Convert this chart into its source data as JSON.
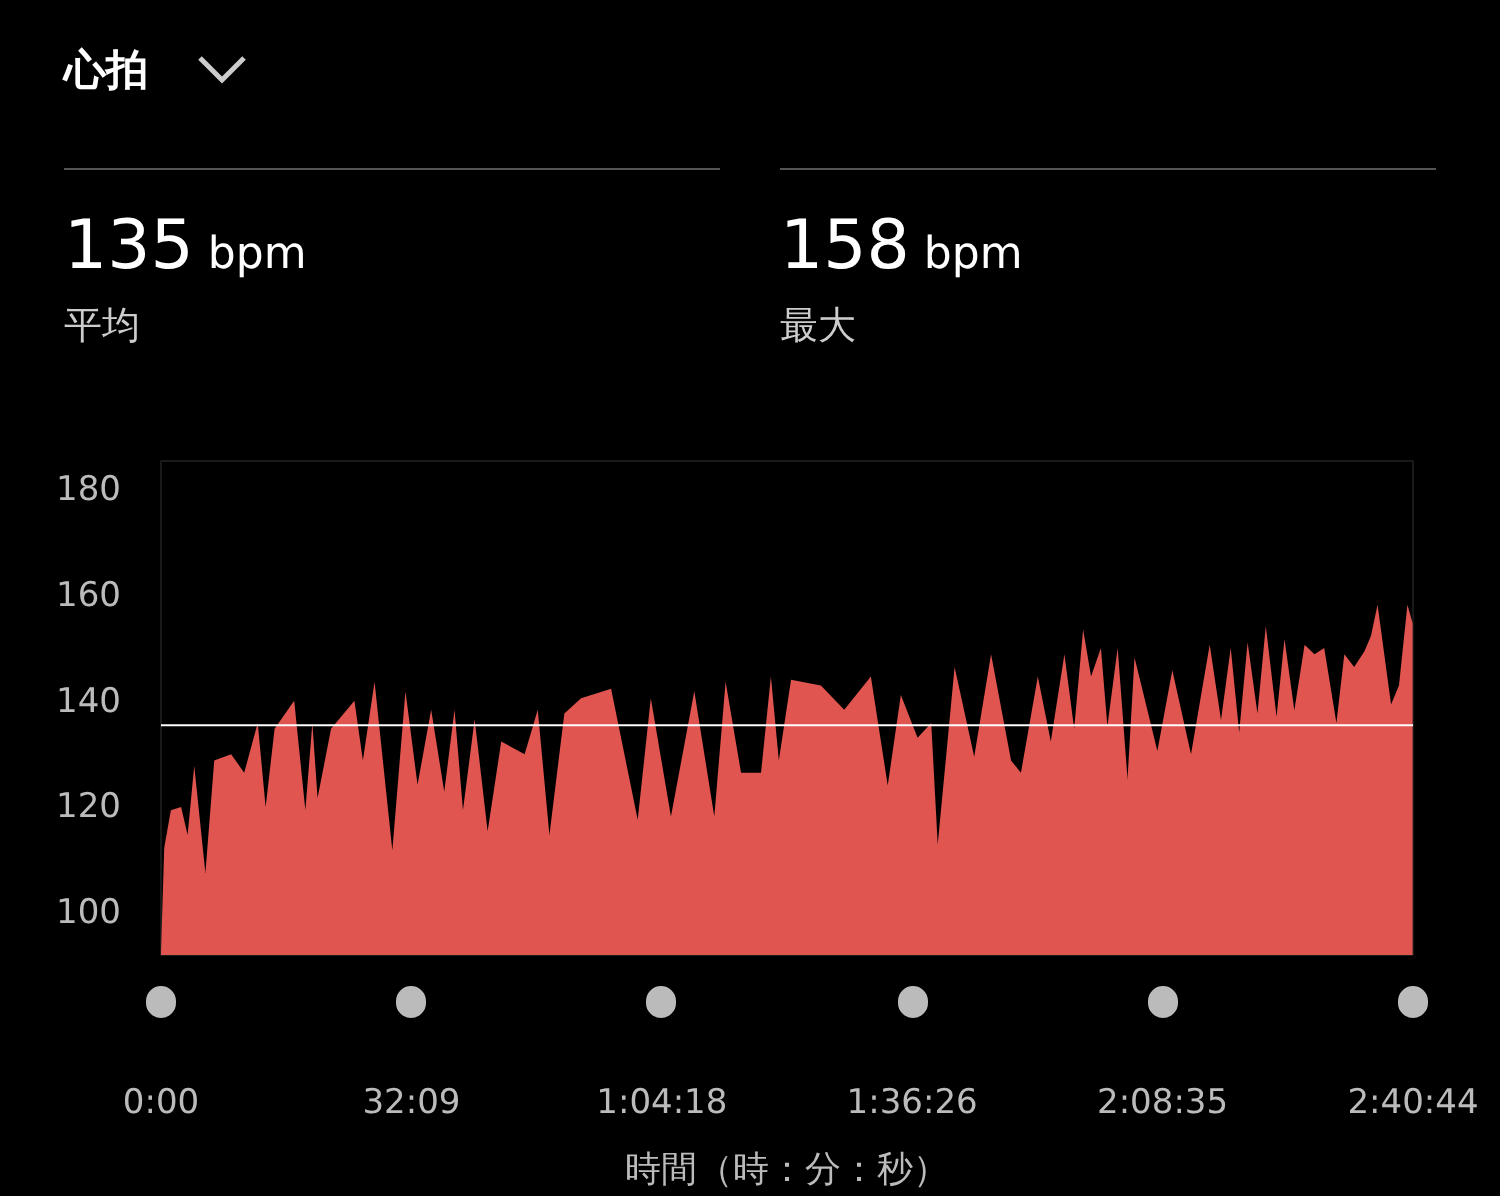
{
  "chart_data": {
    "type": "area",
    "title": "心拍",
    "xlabel": "時間（時：分：秒）",
    "annotations": [
      "135 bpm",
      "平均",
      "158 bpm",
      "最大"
    ],
    "x": [
      0,
      25,
      76,
      155,
      205,
      256,
      342,
      410,
      540,
      641,
      745,
      806,
      875,
      1026,
      1112,
      1166,
      1206,
      1310,
      1490,
      1555,
      1645,
      1782,
      1883,
      1976,
      2081,
      2182,
      2261,
      2326,
      2416,
      2516,
      2621,
      2801,
      2902,
      2992,
      3107,
      3236,
      3467,
      3672,
      3773,
      3928,
      4108,
      4262,
      4349,
      4468,
      4622,
      4698,
      4759,
      4853,
      5083,
      5263,
      5468,
      5598,
      5699,
      5828,
      5933,
      5983,
      6113,
      6264,
      6394,
      6548,
      6624,
      6754,
      6854,
      6959,
      7034,
      7103,
      7164,
      7240,
      7290,
      7369,
      7445,
      7499,
      7675,
      7790,
      7934,
      8078,
      8165,
      8240,
      8305,
      8370,
      8446,
      8510,
      8593,
      8654,
      8730,
      8809,
      8885,
      8960,
      9054,
      9115,
      9191,
      9270,
      9320,
      9371,
      9475,
      9536,
      9601,
      9641
    ],
    "series": [
      {
        "color": "#e05550",
        "values": [
          92,
          111.8,
          118.9,
          119.5,
          114.2,
          127.3,
          107,
          128.3,
          129.5,
          126,
          135.4,
          119.5,
          134.3,
          139.6,
          118.9,
          135.4,
          121.2,
          134.3,
          139.6,
          128.3,
          143.2,
          111.3,
          141.4,
          123.7,
          137.9,
          122.4,
          137.9,
          118.9,
          136.1,
          114.9,
          131.9,
          129.5,
          137.9,
          114.2,
          137.2,
          140.1,
          141.9,
          117.1,
          140.1,
          117.7,
          141.4,
          117.7,
          143.2,
          126,
          126,
          144.2,
          128.3,
          143.6,
          142.5,
          137.9,
          144.2,
          123.6,
          140.7,
          132.6,
          135.4,
          112.4,
          146,
          129,
          148.4,
          128.3,
          126,
          144.2,
          131.9,
          148.4,
          134.3,
          153.1,
          144.2,
          149.6,
          134.8,
          149.6,
          124.8,
          147.8,
          130.1,
          145.4,
          129.5,
          150.2,
          136,
          149.6,
          133.6,
          150.7,
          137.2,
          153.7,
          136.6,
          151.3,
          137.8,
          150.2,
          148.4,
          149.6,
          135.4,
          148.4,
          146,
          149,
          151.9,
          157.8,
          138.9,
          142.5,
          157.8,
          154.3
        ]
      }
    ],
    "xlim": [
      0,
      9644
    ],
    "ylim": [
      91.5,
      185
    ],
    "xticks": [
      {
        "value": 0,
        "label": "0:00"
      },
      {
        "value": 1929,
        "label": "32:09"
      },
      {
        "value": 3858,
        "label": "1:04:18"
      },
      {
        "value": 5786,
        "label": "1:36:26"
      },
      {
        "value": 7715,
        "label": "2:08:35"
      },
      {
        "value": 9644,
        "label": "2:40:44"
      }
    ],
    "yticks": [
      100,
      120,
      140,
      160,
      180
    ],
    "ref_lines": [
      {
        "axis": "y",
        "value": 135,
        "color": "#ffffff"
      }
    ]
  }
}
